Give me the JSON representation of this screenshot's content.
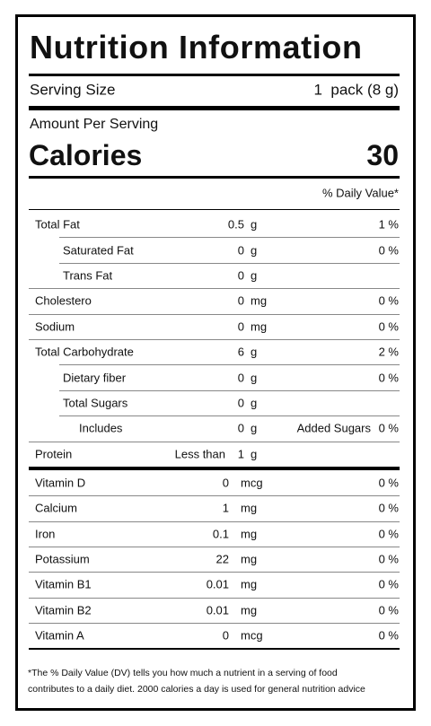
{
  "title": "Nutrition Information",
  "serving": {
    "label": "Serving Size",
    "value": "1  pack (8 g)"
  },
  "amount_per_serving": "Amount Per Serving",
  "calories": {
    "label": "Calories",
    "value": "30"
  },
  "daily_value_header": "% Daily Value*",
  "nutrients": [
    {
      "name": "Total Fat",
      "amount": "0.5",
      "unit": "g",
      "dv": "1 %"
    },
    {
      "name": "Saturated Fat",
      "amount": "0",
      "unit": "g",
      "dv": "0 %"
    },
    {
      "name": "Trans Fat",
      "amount": "0",
      "unit": "g"
    },
    {
      "name": "Cholestero",
      "amount": "0",
      "unit": "mg",
      "dv": "0 %"
    },
    {
      "name": "Sodium",
      "amount": "0",
      "unit": "mg",
      "dv": "0 %"
    },
    {
      "name": "Total Carbohydrate",
      "amount": "6",
      "unit": "g",
      "dv": "2 %"
    },
    {
      "name": "Dietary fiber",
      "amount": "0",
      "unit": "g",
      "dv": "0 %"
    },
    {
      "name": "Total Sugars",
      "amount": "0",
      "unit": "g"
    },
    {
      "name": "Includes",
      "amount": "0",
      "unit": "g",
      "extra": "Added Sugars",
      "dv": "0 %"
    },
    {
      "name": "Protein",
      "prefix": "Less than",
      "amount": "1",
      "unit": "g"
    }
  ],
  "vitamins": [
    {
      "name": "Vitamin D",
      "amount": "0",
      "unit": "mcg",
      "dv": "0 %"
    },
    {
      "name": "Calcium",
      "amount": "1",
      "unit": "mg",
      "dv": "0 %"
    },
    {
      "name": "Iron",
      "amount": "0.1",
      "unit": "mg",
      "dv": "0 %"
    },
    {
      "name": "Potassium",
      "amount": "22",
      "unit": "mg",
      "dv": "0 %"
    },
    {
      "name": "Vitamin B1",
      "amount": "0.01",
      "unit": "mg",
      "dv": "0 %"
    },
    {
      "name": "Vitamin B2",
      "amount": "0.01",
      "unit": "mg",
      "dv": "0 %"
    },
    {
      "name": "Vitamin A",
      "amount": "0",
      "unit": "mcg",
      "dv": "0 %"
    }
  ],
  "footnote": [
    "*The % Daily Value (DV) tells you how much a nutrient in a serving of food",
    "contributes to a daily diet. 2000 calories a day is used for general nutrition advice"
  ]
}
